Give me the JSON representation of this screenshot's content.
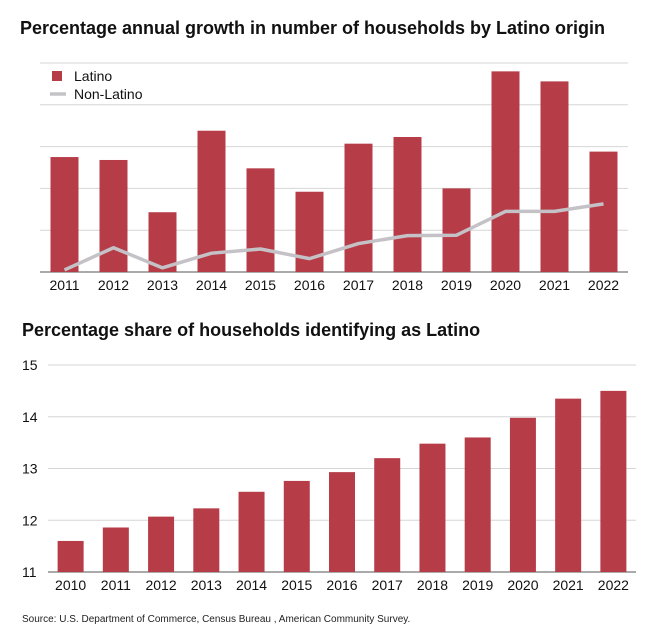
{
  "colors": {
    "latino": "#b63c48",
    "non_latino": "#c4c2c6",
    "grid": "#d6d6d6",
    "axis": "#555555"
  },
  "chart_data": [
    {
      "type": "bar",
      "title": "Percentage annual growth in number of households by Latino origin",
      "categories": [
        "2011",
        "2012",
        "2013",
        "2014",
        "2015",
        "2016",
        "2017",
        "2018",
        "2019",
        "2020",
        "2021",
        "2022"
      ],
      "ylim": [
        0,
        5
      ],
      "y_ticks_labeled": false,
      "grid": true,
      "legend": {
        "placement": "top-left",
        "entries": [
          "Latino",
          "Non-Latino"
        ]
      },
      "series": [
        {
          "name": "Latino",
          "type": "bar",
          "values": [
            2.75,
            2.68,
            1.43,
            3.38,
            2.48,
            1.92,
            3.07,
            3.23,
            2.0,
            4.8,
            4.56,
            2.88
          ]
        },
        {
          "name": "Non-Latino",
          "type": "line",
          "values": [
            0.05,
            0.58,
            0.1,
            0.45,
            0.55,
            0.32,
            0.68,
            0.87,
            0.88,
            1.45,
            1.45,
            1.63
          ]
        }
      ]
    },
    {
      "type": "bar",
      "title": "Percentage share of households identifying as Latino",
      "categories": [
        "2010",
        "2011",
        "2012",
        "2013",
        "2014",
        "2015",
        "2016",
        "2017",
        "2018",
        "2019",
        "2020",
        "2021",
        "2022"
      ],
      "ylim": [
        11,
        15
      ],
      "y_ticks": [
        11,
        12,
        13,
        14,
        15
      ],
      "grid": true,
      "series": [
        {
          "values": [
            11.6,
            11.86,
            12.07,
            12.23,
            12.55,
            12.76,
            12.93,
            13.2,
            13.48,
            13.6,
            13.98,
            14.35,
            14.5
          ]
        }
      ]
    }
  ],
  "source": "Source: U.S. Department of Commerce, Census Bureau , American Community Survey."
}
